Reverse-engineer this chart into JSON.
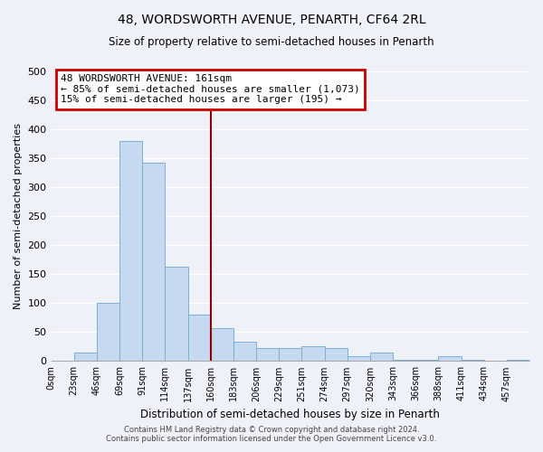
{
  "title": "48, WORDSWORTH AVENUE, PENARTH, CF64 2RL",
  "subtitle": "Size of property relative to semi-detached houses in Penarth",
  "xlabel": "Distribution of semi-detached houses by size in Penarth",
  "ylabel": "Number of semi-detached properties",
  "bin_labels": [
    "0sqm",
    "23sqm",
    "46sqm",
    "69sqm",
    "91sqm",
    "114sqm",
    "137sqm",
    "160sqm",
    "183sqm",
    "206sqm",
    "229sqm",
    "251sqm",
    "274sqm",
    "297sqm",
    "320sqm",
    "343sqm",
    "366sqm",
    "388sqm",
    "411sqm",
    "434sqm",
    "457sqm"
  ],
  "bar_heights": [
    0,
    15,
    100,
    380,
    342,
    163,
    80,
    57,
    33,
    23,
    22,
    25,
    22,
    8,
    15,
    2,
    2,
    8,
    2,
    0,
    2
  ],
  "bar_color": "#c6d9f0",
  "bar_edge_color": "#7bafd4",
  "ylim": [
    0,
    500
  ],
  "yticks": [
    0,
    50,
    100,
    150,
    200,
    250,
    300,
    350,
    400,
    450,
    500
  ],
  "property_line_color": "#8b0000",
  "annotation_title": "48 WORDSWORTH AVENUE: 161sqm",
  "annotation_line1": "← 85% of semi-detached houses are smaller (1,073)",
  "annotation_line2": "15% of semi-detached houses are larger (195) →",
  "annotation_box_color": "#ffffff",
  "annotation_box_edge": "#cc0000",
  "footer1": "Contains HM Land Registry data © Crown copyright and database right 2024.",
  "footer2": "Contains public sector information licensed under the Open Government Licence v3.0.",
  "background_color": "#eef2f8",
  "grid_color": "#ffffff"
}
